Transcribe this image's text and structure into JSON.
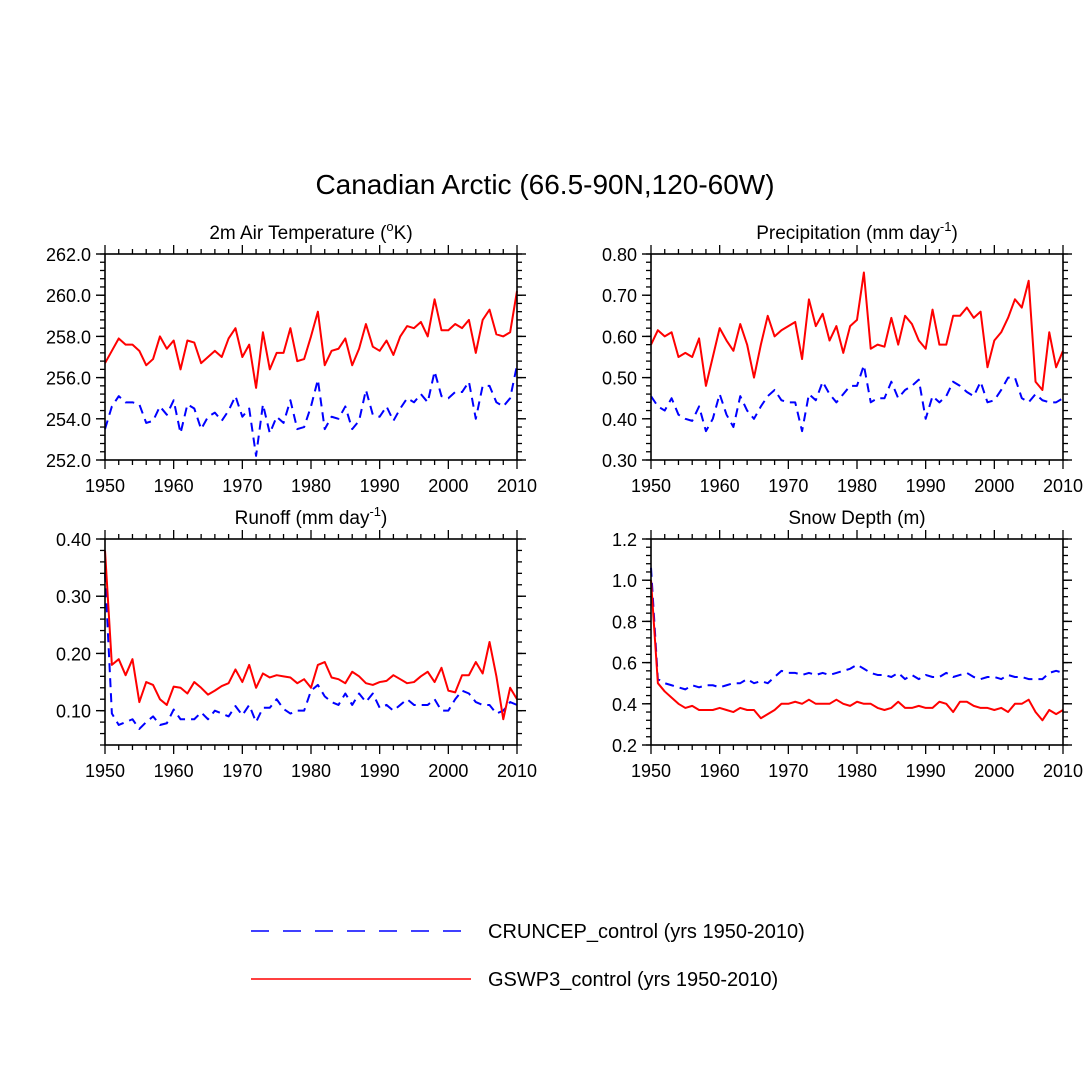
{
  "figure_title": "Canadian Arctic (66.5-90N,120-60W)",
  "chart_data": [
    {
      "id": "temp",
      "type": "line",
      "title": "2m Air Temperature (",
      "title_sup": "o",
      "title_tail": "K)",
      "xlim": [
        1950,
        2010
      ],
      "ylim": [
        252,
        262
      ],
      "x_ticks": [
        1950,
        1960,
        1970,
        1980,
        1990,
        2000,
        2010
      ],
      "x_tick_labels": [
        "1950",
        "1960",
        "1970",
        "1980",
        "1990",
        "2000",
        "2010"
      ],
      "y_ticks": [
        252,
        254,
        256,
        258,
        260,
        262
      ],
      "y_tick_labels": [
        "252.0",
        "254.0",
        "256.0",
        "258.0",
        "260.0",
        "262.0"
      ],
      "y_minor_step": 0.4,
      "series": [
        {
          "name": "CRUNCEP_control (yrs 1950-2010)",
          "values": [
            253.5,
            254.6,
            255.1,
            254.8,
            254.8,
            254.7,
            253.8,
            253.9,
            254.6,
            254.2,
            254.9,
            253.3,
            254.7,
            254.5,
            253.5,
            254.1,
            254.3,
            253.9,
            254.4,
            255.1,
            254.1,
            254.5,
            252.2,
            254.7,
            253.3,
            254.1,
            253.8,
            254.9,
            253.5,
            253.6,
            254.6,
            255.9,
            253.5,
            254.1,
            254.0,
            254.6,
            253.5,
            253.9,
            255.4,
            254.2,
            254.1,
            254.6,
            253.9,
            254.5,
            255.0,
            254.8,
            255.2,
            254.8,
            256.3,
            255.1,
            255.0,
            255.3,
            255.3,
            255.8,
            254.0,
            255.6,
            255.6,
            254.8,
            254.6,
            255.0,
            256.6
          ]
        },
        {
          "name": "GSWP3_control (yrs 1950-2010)",
          "values": [
            256.7,
            257.3,
            257.9,
            257.6,
            257.6,
            257.3,
            256.6,
            256.9,
            258.0,
            257.4,
            257.8,
            256.4,
            257.8,
            257.7,
            256.7,
            257.0,
            257.3,
            257.0,
            257.9,
            258.4,
            257.0,
            257.6,
            255.5,
            258.2,
            256.4,
            257.2,
            257.2,
            258.4,
            256.8,
            256.9,
            258.0,
            259.2,
            256.6,
            257.3,
            257.4,
            257.9,
            256.6,
            257.4,
            258.6,
            257.5,
            257.3,
            257.8,
            257.1,
            258.0,
            258.5,
            258.4,
            258.7,
            258.0,
            259.8,
            258.3,
            258.3,
            258.6,
            258.4,
            258.8,
            257.2,
            258.8,
            259.3,
            258.1,
            258.0,
            258.2,
            260.2
          ]
        }
      ]
    },
    {
      "id": "precip",
      "type": "line",
      "title": "Precipitation (mm day",
      "title_sup": "-1",
      "title_tail": ")",
      "xlim": [
        1950,
        2010
      ],
      "ylim": [
        0.3,
        0.8
      ],
      "x_ticks": [
        1950,
        1960,
        1970,
        1980,
        1990,
        2000,
        2010
      ],
      "x_tick_labels": [
        "1950",
        "1960",
        "1970",
        "1980",
        "1990",
        "2000",
        "2010"
      ],
      "y_ticks": [
        0.3,
        0.4,
        0.5,
        0.6,
        0.7,
        0.8
      ],
      "y_tick_labels": [
        "0.30",
        "0.40",
        "0.50",
        "0.60",
        "0.70",
        "0.80"
      ],
      "y_minor_step": 0.02,
      "series": [
        {
          "name": "CRUNCEP_control (yrs 1950-2010)",
          "values": [
            0.455,
            0.43,
            0.42,
            0.45,
            0.41,
            0.4,
            0.395,
            0.43,
            0.37,
            0.4,
            0.46,
            0.41,
            0.38,
            0.455,
            0.42,
            0.4,
            0.43,
            0.455,
            0.47,
            0.445,
            0.44,
            0.44,
            0.37,
            0.46,
            0.445,
            0.49,
            0.46,
            0.44,
            0.46,
            0.48,
            0.48,
            0.53,
            0.44,
            0.45,
            0.45,
            0.49,
            0.45,
            0.47,
            0.48,
            0.495,
            0.4,
            0.455,
            0.44,
            0.455,
            0.49,
            0.48,
            0.465,
            0.455,
            0.49,
            0.44,
            0.445,
            0.47,
            0.5,
            0.5,
            0.45,
            0.44,
            0.46,
            0.445,
            0.44,
            0.44,
            0.45
          ]
        },
        {
          "name": "GSWP3_control (yrs 1950-2010)",
          "values": [
            0.58,
            0.615,
            0.6,
            0.61,
            0.55,
            0.56,
            0.55,
            0.595,
            0.48,
            0.55,
            0.62,
            0.59,
            0.565,
            0.63,
            0.58,
            0.5,
            0.58,
            0.65,
            0.6,
            0.615,
            0.625,
            0.635,
            0.545,
            0.69,
            0.625,
            0.655,
            0.59,
            0.625,
            0.56,
            0.625,
            0.64,
            0.755,
            0.57,
            0.58,
            0.575,
            0.645,
            0.58,
            0.65,
            0.63,
            0.59,
            0.57,
            0.665,
            0.58,
            0.58,
            0.65,
            0.65,
            0.67,
            0.645,
            0.66,
            0.525,
            0.59,
            0.61,
            0.645,
            0.69,
            0.67,
            0.735,
            0.49,
            0.47,
            0.61,
            0.525,
            0.565
          ]
        }
      ]
    },
    {
      "id": "runoff",
      "type": "line",
      "title": "Runoff (mm day",
      "title_sup": "-1",
      "title_tail": ")",
      "xlim": [
        1950,
        2010
      ],
      "ylim": [
        0.04,
        0.4
      ],
      "x_ticks": [
        1950,
        1960,
        1970,
        1980,
        1990,
        2000,
        2010
      ],
      "x_tick_labels": [
        "1950",
        "1960",
        "1970",
        "1980",
        "1990",
        "2000",
        "2010"
      ],
      "y_ticks": [
        0.1,
        0.2,
        0.3,
        0.4
      ],
      "y_tick_labels": [
        "0.10",
        "0.20",
        "0.30",
        "0.40"
      ],
      "y_minor_step": 0.02,
      "series": [
        {
          "name": "CRUNCEP_control (yrs 1950-2010)",
          "values": [
            0.34,
            0.095,
            0.075,
            0.08,
            0.085,
            0.068,
            0.08,
            0.09,
            0.075,
            0.078,
            0.102,
            0.085,
            0.085,
            0.085,
            0.097,
            0.085,
            0.1,
            0.095,
            0.09,
            0.108,
            0.092,
            0.11,
            0.08,
            0.105,
            0.105,
            0.12,
            0.103,
            0.095,
            0.1,
            0.1,
            0.135,
            0.145,
            0.125,
            0.115,
            0.11,
            0.13,
            0.11,
            0.13,
            0.115,
            0.13,
            0.105,
            0.11,
            0.1,
            0.11,
            0.12,
            0.11,
            0.11,
            0.11,
            0.12,
            0.1,
            0.1,
            0.12,
            0.135,
            0.13,
            0.115,
            0.11,
            0.11,
            0.095,
            0.1,
            0.115,
            0.11
          ]
        },
        {
          "name": "GSWP3_control (yrs 1950-2010)",
          "values": [
            0.38,
            0.18,
            0.19,
            0.162,
            0.19,
            0.115,
            0.15,
            0.145,
            0.12,
            0.11,
            0.142,
            0.14,
            0.13,
            0.15,
            0.14,
            0.128,
            0.135,
            0.143,
            0.148,
            0.172,
            0.15,
            0.18,
            0.14,
            0.165,
            0.158,
            0.162,
            0.16,
            0.158,
            0.148,
            0.155,
            0.14,
            0.18,
            0.185,
            0.158,
            0.155,
            0.148,
            0.168,
            0.16,
            0.148,
            0.145,
            0.15,
            0.152,
            0.162,
            0.155,
            0.148,
            0.15,
            0.16,
            0.168,
            0.15,
            0.175,
            0.135,
            0.132,
            0.162,
            0.162,
            0.185,
            0.165,
            0.22,
            0.16,
            0.085,
            0.14,
            0.12
          ]
        }
      ]
    },
    {
      "id": "snow",
      "type": "line",
      "title": "Snow Depth (m)",
      "title_sup": "",
      "title_tail": "",
      "xlim": [
        1950,
        2010
      ],
      "ylim": [
        0.2,
        1.2
      ],
      "x_ticks": [
        1950,
        1960,
        1970,
        1980,
        1990,
        2000,
        2010
      ],
      "x_tick_labels": [
        "1950",
        "1960",
        "1970",
        "1980",
        "1990",
        "2000",
        "2010"
      ],
      "y_ticks": [
        0.2,
        0.4,
        0.6,
        0.8,
        1.0,
        1.2
      ],
      "y_tick_labels": [
        "0.2",
        "0.4",
        "0.6",
        "0.8",
        "1.0",
        "1.2"
      ],
      "y_minor_step": 0.04,
      "series": [
        {
          "name": "CRUNCEP_control (yrs 1950-2010)",
          "values": [
            1.06,
            0.52,
            0.5,
            0.49,
            0.48,
            0.47,
            0.49,
            0.48,
            0.49,
            0.49,
            0.48,
            0.49,
            0.5,
            0.5,
            0.52,
            0.5,
            0.51,
            0.5,
            0.53,
            0.56,
            0.55,
            0.55,
            0.54,
            0.55,
            0.54,
            0.55,
            0.54,
            0.55,
            0.56,
            0.57,
            0.59,
            0.57,
            0.55,
            0.54,
            0.54,
            0.53,
            0.55,
            0.52,
            0.54,
            0.52,
            0.54,
            0.53,
            0.53,
            0.55,
            0.53,
            0.54,
            0.55,
            0.53,
            0.52,
            0.53,
            0.53,
            0.52,
            0.54,
            0.53,
            0.53,
            0.52,
            0.52,
            0.52,
            0.55,
            0.56,
            0.55
          ]
        },
        {
          "name": "GSWP3_control (yrs 1950-2010)",
          "values": [
            1.0,
            0.5,
            0.46,
            0.43,
            0.4,
            0.38,
            0.39,
            0.37,
            0.37,
            0.37,
            0.38,
            0.37,
            0.36,
            0.38,
            0.37,
            0.37,
            0.33,
            0.35,
            0.37,
            0.4,
            0.4,
            0.41,
            0.4,
            0.42,
            0.4,
            0.4,
            0.4,
            0.42,
            0.4,
            0.39,
            0.41,
            0.4,
            0.4,
            0.38,
            0.37,
            0.38,
            0.41,
            0.38,
            0.38,
            0.39,
            0.38,
            0.38,
            0.41,
            0.4,
            0.36,
            0.41,
            0.41,
            0.39,
            0.38,
            0.38,
            0.37,
            0.38,
            0.36,
            0.4,
            0.4,
            0.42,
            0.36,
            0.32,
            0.37,
            0.35,
            0.37
          ]
        }
      ]
    }
  ],
  "legend": {
    "items": [
      {
        "label": "CRUNCEP_control (yrs 1950-2010)",
        "color": "#0000ff",
        "style": "dashed"
      },
      {
        "label": "GSWP3_control (yrs 1950-2010)",
        "color": "#ff0000",
        "style": "solid"
      }
    ]
  }
}
